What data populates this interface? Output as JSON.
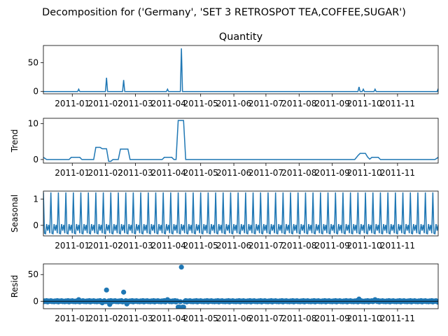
{
  "figure": {
    "suptitle": "Decomposition for ('Germany', 'SET 3 RETROSPOT TEA,COFFEE,SUGAR')"
  },
  "chart_data": [
    {
      "type": "line",
      "title": "Quantity",
      "ylabel": "",
      "x_range": [
        "2010-12-05",
        "2011-12-09"
      ],
      "ylim": [
        -4,
        80
      ],
      "yticks": [
        0,
        50
      ],
      "xticks": [
        "2011-01",
        "2011-02",
        "2011-03",
        "2011-04",
        "2011-05",
        "2011-06",
        "2011-07",
        "2011-08",
        "2011-09",
        "2011-10",
        "2011-11"
      ],
      "color": "#1f77b4",
      "baseline": 0,
      "points": [
        {
          "x": "2011-01-07",
          "y": 4
        },
        {
          "x": "2011-02-02",
          "y": 24
        },
        {
          "x": "2011-02-18",
          "y": 20
        },
        {
          "x": "2011-03-31",
          "y": 4
        },
        {
          "x": "2011-04-13",
          "y": 75
        },
        {
          "x": "2011-09-26",
          "y": 8
        },
        {
          "x": "2011-09-30",
          "y": 4
        },
        {
          "x": "2011-10-11",
          "y": 4
        },
        {
          "x": "2011-12-09",
          "y": 5
        }
      ]
    },
    {
      "type": "line",
      "title": "",
      "ylabel": "Trend",
      "x_range": [
        "2010-12-05",
        "2011-12-09"
      ],
      "ylim": [
        -1,
        11.5
      ],
      "yticks": [
        0,
        10
      ],
      "xticks": [
        "2011-01",
        "2011-02",
        "2011-03",
        "2011-04",
        "2011-05",
        "2011-06",
        "2011-07",
        "2011-08",
        "2011-09",
        "2011-10",
        "2011-11"
      ],
      "color": "#1f77b4",
      "points": [
        {
          "x": "2010-12-05",
          "y": 0.6
        },
        {
          "x": "2010-12-08",
          "y": 0
        },
        {
          "x": "2010-12-29",
          "y": 0
        },
        {
          "x": "2010-12-31",
          "y": 0.6
        },
        {
          "x": "2011-01-08",
          "y": 0.6
        },
        {
          "x": "2011-01-10",
          "y": 0
        },
        {
          "x": "2011-01-21",
          "y": 0
        },
        {
          "x": "2011-01-23",
          "y": 3.4
        },
        {
          "x": "2011-01-27",
          "y": 3.4
        },
        {
          "x": "2011-01-29",
          "y": 3
        },
        {
          "x": "2011-02-02",
          "y": 3
        },
        {
          "x": "2011-02-04",
          "y": -0.5
        },
        {
          "x": "2011-02-06",
          "y": -0.5
        },
        {
          "x": "2011-02-08",
          "y": 0
        },
        {
          "x": "2011-02-13",
          "y": 0
        },
        {
          "x": "2011-02-15",
          "y": 2.9
        },
        {
          "x": "2011-02-22",
          "y": 2.9
        },
        {
          "x": "2011-02-24",
          "y": 0
        },
        {
          "x": "2011-03-26",
          "y": 0
        },
        {
          "x": "2011-03-28",
          "y": 0.6
        },
        {
          "x": "2011-04-04",
          "y": 0.6
        },
        {
          "x": "2011-04-06",
          "y": 0
        },
        {
          "x": "2011-04-08",
          "y": 0
        },
        {
          "x": "2011-04-10",
          "y": 10.9
        },
        {
          "x": "2011-04-15",
          "y": 10.9
        },
        {
          "x": "2011-04-17",
          "y": 0
        },
        {
          "x": "2011-09-22",
          "y": 0
        },
        {
          "x": "2011-09-25",
          "y": 1.1
        },
        {
          "x": "2011-09-27",
          "y": 1.7
        },
        {
          "x": "2011-10-02",
          "y": 1.7
        },
        {
          "x": "2011-10-04",
          "y": 0.7
        },
        {
          "x": "2011-10-06",
          "y": 0.1
        },
        {
          "x": "2011-10-08",
          "y": 0.6
        },
        {
          "x": "2011-10-14",
          "y": 0.6
        },
        {
          "x": "2011-10-16",
          "y": 0
        },
        {
          "x": "2011-12-06",
          "y": 0
        },
        {
          "x": "2011-12-09",
          "y": 0.6
        }
      ]
    },
    {
      "type": "line",
      "title": "",
      "ylabel": "Seasonal",
      "x_range": [
        "2010-12-05",
        "2011-12-09"
      ],
      "ylim": [
        -0.4,
        1.3
      ],
      "yticks": [
        0,
        1
      ],
      "xticks": [
        "2011-01",
        "2011-02",
        "2011-03",
        "2011-04",
        "2011-05",
        "2011-06",
        "2011-07",
        "2011-08",
        "2011-09",
        "2011-10",
        "2011-11"
      ],
      "color": "#1f77b4",
      "start": "2010-12-05",
      "end": "2011-12-09",
      "period_days": 7,
      "pattern": [
        1.25,
        -0.3,
        -0.32,
        0.05,
        -0.2,
        0.02,
        -0.3
      ]
    },
    {
      "type": "scatter",
      "title": "",
      "ylabel": "Resid",
      "x_range": [
        "2010-12-05",
        "2011-12-09"
      ],
      "ylim": [
        -14,
        70
      ],
      "yticks": [
        0,
        50
      ],
      "xticks": [
        "2011-01",
        "2011-02",
        "2011-03",
        "2011-04",
        "2011-05",
        "2011-06",
        "2011-07",
        "2011-08",
        "2011-09",
        "2011-10",
        "2011-11"
      ],
      "color": "#1f77b4",
      "base_pattern": [
        -1,
        0.6,
        -0.5,
        1.2,
        -1.3,
        0.4,
        -0.2,
        1,
        -0.8,
        0.2
      ],
      "points": [
        {
          "x": "2011-01-07",
          "y": 3
        },
        {
          "x": "2011-01-29",
          "y": -3
        },
        {
          "x": "2011-02-02",
          "y": 21
        },
        {
          "x": "2011-02-05",
          "y": -6
        },
        {
          "x": "2011-02-18",
          "y": 17
        },
        {
          "x": "2011-02-21",
          "y": -5
        },
        {
          "x": "2011-03-31",
          "y": 3
        },
        {
          "x": "2011-04-10",
          "y": -11
        },
        {
          "x": "2011-04-11",
          "y": -11
        },
        {
          "x": "2011-04-13",
          "y": 64
        },
        {
          "x": "2011-04-14",
          "y": -11
        },
        {
          "x": "2011-04-15",
          "y": -11
        },
        {
          "x": "2011-09-26",
          "y": 4
        },
        {
          "x": "2011-10-11",
          "y": 3
        },
        {
          "x": "2011-12-09",
          "y": -2
        }
      ]
    }
  ]
}
